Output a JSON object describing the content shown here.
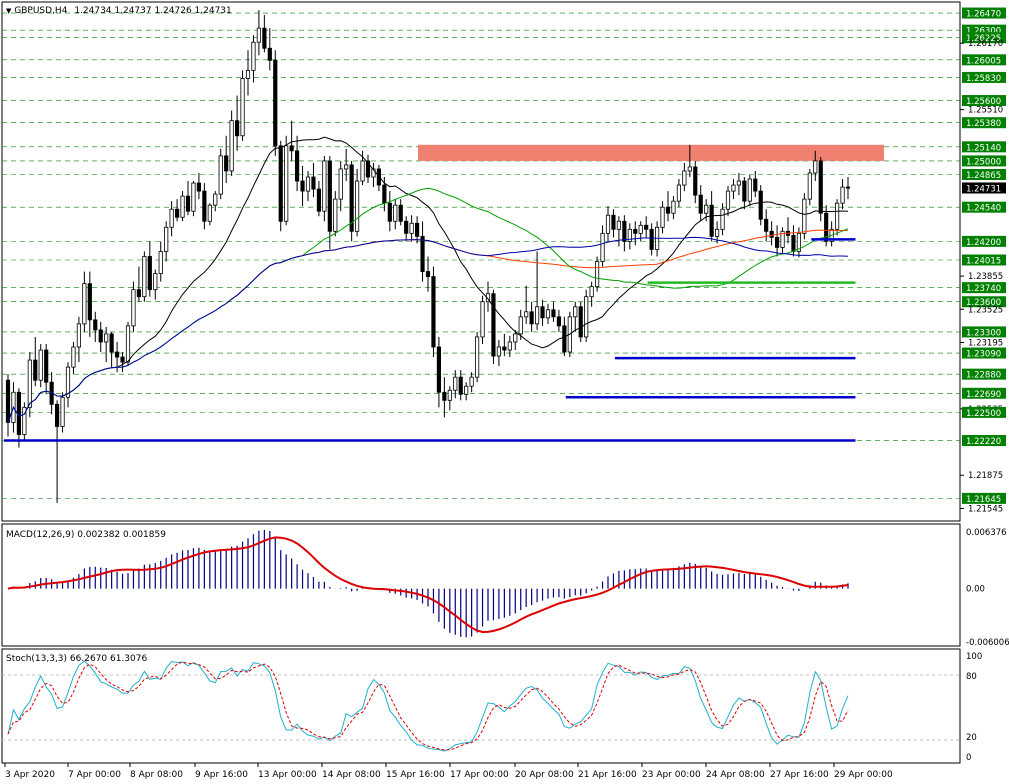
{
  "header": {
    "symbol": "GBPUSD,H4",
    "ohlc": "1.24734 1.24737 1.24726 1.24731"
  },
  "macd": {
    "label": "MACD(12,26,9) 0.002382 0.001859",
    "ticks": [
      "0.006376",
      "0.00",
      "-0.006006"
    ]
  },
  "stoch": {
    "label": "Stoch(13,3,3) 66.2670 61.3076",
    "ticks": [
      "100",
      "80",
      "20",
      "0"
    ]
  },
  "x_labels": [
    "3 Apr 2020",
    "7 Apr 00:00",
    "8 Apr 08:00",
    "9 Apr 16:00",
    "13 Apr 00:00",
    "14 Apr 08:00",
    "15 Apr 16:00",
    "17 Apr 00:00",
    "20 Apr 08:00",
    "21 Apr 16:00",
    "23 Apr 00:00",
    "24 Apr 08:00",
    "27 Apr 16:00",
    "29 Apr 00:00"
  ],
  "colors": {
    "level_line": "#0000cc",
    "support_line": "#22bb22",
    "resistance_zone": "#f08070",
    "up_candle": "#ffffff",
    "down_candle": "#000000",
    "ma_black": "#000000",
    "ma_red": "#ff4000",
    "ma_green": "#00a000",
    "ma_blue": "#0000aa",
    "macd_signal": "#dd0000",
    "macd_hist": "#000080",
    "stoch_main": "#20b0d0",
    "stoch_signal": "#dd0000",
    "price_tag": "#008000",
    "current_tag": "#000000"
  },
  "chart_data": {
    "type": "candlestick",
    "title": "GBPUSD,H4",
    "current_price": 1.24731,
    "ylim": [
      1.2144,
      1.2656
    ],
    "price_labels": [
      {
        "value": 1.2647,
        "text": "1.26470",
        "tag": true
      },
      {
        "value": 1.263,
        "text": "1.26300",
        "tag": true
      },
      {
        "value": 1.26225,
        "text": "1.26225",
        "tag": true
      },
      {
        "value": 1.2617,
        "text": "1.26170",
        "tag": false
      },
      {
        "value": 1.26005,
        "text": "1.26005",
        "tag": true
      },
      {
        "value": 1.2583,
        "text": "1.25830",
        "tag": true
      },
      {
        "value": 1.256,
        "text": "1.25600",
        "tag": true
      },
      {
        "value": 1.2551,
        "text": "1.25510",
        "tag": false
      },
      {
        "value": 1.2538,
        "text": "1.25380",
        "tag": true
      },
      {
        "value": 1.2514,
        "text": "1.25140",
        "tag": true
      },
      {
        "value": 1.25,
        "text": "1.25000",
        "tag": true
      },
      {
        "value": 1.24865,
        "text": "1.24865",
        "tag": true
      },
      {
        "value": 1.24731,
        "text": "1.24731",
        "tag": "current"
      },
      {
        "value": 1.2454,
        "text": "1.24540",
        "tag": true
      },
      {
        "value": 1.242,
        "text": "1.24200",
        "tag": true
      },
      {
        "value": 1.24015,
        "text": "1.24015",
        "tag": true
      },
      {
        "value": 1.23855,
        "text": "1.23855",
        "tag": false
      },
      {
        "value": 1.2374,
        "text": "1.23740",
        "tag": true
      },
      {
        "value": 1.236,
        "text": "1.23600",
        "tag": true
      },
      {
        "value": 1.23525,
        "text": "1.23525",
        "tag": false
      },
      {
        "value": 1.233,
        "text": "1.23300",
        "tag": true
      },
      {
        "value": 1.23195,
        "text": "1.23195",
        "tag": false
      },
      {
        "value": 1.2309,
        "text": "1.23090",
        "tag": true
      },
      {
        "value": 1.2288,
        "text": "1.22880",
        "tag": true
      },
      {
        "value": 1.2269,
        "text": "1.22690",
        "tag": true
      },
      {
        "value": 1.22535,
        "text": "1.22535",
        "tag": false
      },
      {
        "value": 1.225,
        "text": "1.22500",
        "tag": true
      },
      {
        "value": 1.2222,
        "text": "1.22220",
        "tag": true
      },
      {
        "value": 1.21875,
        "text": "1.21875",
        "tag": false
      },
      {
        "value": 1.21645,
        "text": "1.21645",
        "tag": true
      },
      {
        "value": 1.21545,
        "text": "1.21545",
        "tag": false
      }
    ],
    "dashed_levels": [
      1.2647,
      1.263,
      1.26225,
      1.26005,
      1.2583,
      1.256,
      1.2538,
      1.2514,
      1.25,
      1.24865,
      1.2454,
      1.242,
      1.24015,
      1.2374,
      1.236,
      1.233,
      1.2309,
      1.2288,
      1.2269,
      1.225,
      1.2222,
      1.21645
    ],
    "resistance_zone": [
      1.25,
      1.2516
    ],
    "horizontal_lines": [
      {
        "color": "blue",
        "price": 1.2222,
        "from": 0,
        "to": 155
      },
      {
        "color": "blue",
        "price": 1.2265,
        "from": 103,
        "to": 155
      },
      {
        "color": "blue",
        "price": 1.2304,
        "from": 112,
        "to": 155
      },
      {
        "color": "blue",
        "price": 1.2422,
        "from": 148,
        "to": 155
      },
      {
        "color": "green",
        "price": 1.2379,
        "from": 118,
        "to": 155
      }
    ],
    "candles": [
      [
        1.2282,
        1.2288,
        1.2226,
        1.224
      ],
      [
        1.224,
        1.228,
        1.223,
        1.227
      ],
      [
        1.227,
        1.2274,
        1.2215,
        1.2228
      ],
      [
        1.2228,
        1.226,
        1.2222,
        1.2255
      ],
      [
        1.2255,
        1.231,
        1.2245,
        1.2302
      ],
      [
        1.2302,
        1.2325,
        1.2276,
        1.2282
      ],
      [
        1.2282,
        1.2318,
        1.2275,
        1.2312
      ],
      [
        1.2312,
        1.2318,
        1.2268,
        1.228
      ],
      [
        1.228,
        1.229,
        1.2248,
        1.2258
      ],
      [
        1.2258,
        1.2262,
        1.216,
        1.2236
      ],
      [
        1.2236,
        1.227,
        1.223,
        1.2265
      ],
      [
        1.2265,
        1.23,
        1.2255,
        1.2295
      ],
      [
        1.2295,
        1.232,
        1.2288,
        1.2315
      ],
      [
        1.2315,
        1.2345,
        1.23,
        1.2338
      ],
      [
        1.2338,
        1.239,
        1.233,
        1.2378
      ],
      [
        1.2378,
        1.239,
        1.2325,
        1.2342
      ],
      [
        1.2342,
        1.235,
        1.232,
        1.2332
      ],
      [
        1.2332,
        1.234,
        1.231,
        1.232
      ],
      [
        1.232,
        1.2335,
        1.23,
        1.2328
      ],
      [
        1.2328,
        1.233,
        1.2295,
        1.231
      ],
      [
        1.231,
        1.232,
        1.229,
        1.2305
      ],
      [
        1.2305,
        1.231,
        1.229,
        1.23
      ],
      [
        1.23,
        1.234,
        1.2296,
        1.2336
      ],
      [
        1.2336,
        1.238,
        1.233,
        1.2372
      ],
      [
        1.2372,
        1.2395,
        1.236,
        1.2365
      ],
      [
        1.2365,
        1.241,
        1.236,
        1.2405
      ],
      [
        1.2405,
        1.242,
        1.2365,
        1.2372
      ],
      [
        1.2372,
        1.2392,
        1.2362,
        1.2388
      ],
      [
        1.2388,
        1.242,
        1.238,
        1.241
      ],
      [
        1.241,
        1.244,
        1.24,
        1.2434
      ],
      [
        1.2434,
        1.246,
        1.2425,
        1.2452
      ],
      [
        1.2452,
        1.2462,
        1.244,
        1.2444
      ],
      [
        1.2444,
        1.247,
        1.244,
        1.2465
      ],
      [
        1.2465,
        1.248,
        1.2446,
        1.245
      ],
      [
        1.245,
        1.248,
        1.2445,
        1.2478
      ],
      [
        1.2478,
        1.2488,
        1.2462,
        1.247
      ],
      [
        1.247,
        1.2478,
        1.2432,
        1.244
      ],
      [
        1.244,
        1.2458,
        1.2436,
        1.2456
      ],
      [
        1.2456,
        1.247,
        1.245,
        1.2467
      ],
      [
        1.2467,
        1.2512,
        1.2462,
        1.2505
      ],
      [
        1.2505,
        1.2525,
        1.2478,
        1.249
      ],
      [
        1.249,
        1.255,
        1.2485,
        1.254
      ],
      [
        1.254,
        1.2565,
        1.251,
        1.2525
      ],
      [
        1.2525,
        1.259,
        1.252,
        1.2582
      ],
      [
        1.2582,
        1.261,
        1.2565,
        1.259
      ],
      [
        1.259,
        1.2625,
        1.2578,
        1.2618
      ],
      [
        1.2618,
        1.265,
        1.2605,
        1.2632
      ],
      [
        1.2632,
        1.2645,
        1.2608,
        1.2612
      ],
      [
        1.2612,
        1.2632,
        1.259,
        1.26
      ],
      [
        1.26,
        1.261,
        1.2505,
        1.2515
      ],
      [
        1.2515,
        1.252,
        1.243,
        1.244
      ],
      [
        1.244,
        1.2525,
        1.2436,
        1.2515
      ],
      [
        1.2515,
        1.254,
        1.25,
        1.251
      ],
      [
        1.251,
        1.2525,
        1.247,
        1.248
      ],
      [
        1.248,
        1.2495,
        1.2455,
        1.247
      ],
      [
        1.247,
        1.249,
        1.246,
        1.2484
      ],
      [
        1.2484,
        1.2498,
        1.2464,
        1.2472
      ],
      [
        1.2472,
        1.248,
        1.2445,
        1.245
      ],
      [
        1.245,
        1.2505,
        1.244,
        1.25
      ],
      [
        1.25,
        1.2505,
        1.2412,
        1.243
      ],
      [
        1.243,
        1.247,
        1.2425,
        1.2462
      ],
      [
        1.2462,
        1.25,
        1.245,
        1.2492
      ],
      [
        1.2492,
        1.2512,
        1.248,
        1.2496
      ],
      [
        1.2496,
        1.25,
        1.242,
        1.243
      ],
      [
        1.243,
        1.2492,
        1.2425,
        1.248
      ],
      [
        1.248,
        1.251,
        1.2476,
        1.25
      ],
      [
        1.25,
        1.2506,
        1.2478,
        1.2484
      ],
      [
        1.2484,
        1.2498,
        1.2474,
        1.2492
      ],
      [
        1.2492,
        1.2496,
        1.247,
        1.2476
      ],
      [
        1.2476,
        1.2484,
        1.245,
        1.2458
      ],
      [
        1.2458,
        1.247,
        1.243,
        1.244
      ],
      [
        1.244,
        1.2462,
        1.2432,
        1.2456
      ],
      [
        1.2456,
        1.2462,
        1.2436,
        1.244
      ],
      [
        1.244,
        1.2445,
        1.242,
        1.2428
      ],
      [
        1.2428,
        1.2446,
        1.242,
        1.2438
      ],
      [
        1.2438,
        1.2445,
        1.2418,
        1.2425
      ],
      [
        1.2425,
        1.244,
        1.238,
        1.239
      ],
      [
        1.239,
        1.2405,
        1.237,
        1.2385
      ],
      [
        1.2385,
        1.2395,
        1.2305,
        1.2315
      ],
      [
        1.2315,
        1.2325,
        1.2255,
        1.227
      ],
      [
        1.227,
        1.2285,
        1.2245,
        1.2262
      ],
      [
        1.2262,
        1.2276,
        1.2252,
        1.2272
      ],
      [
        1.2272,
        1.2292,
        1.2264,
        1.2285
      ],
      [
        1.2285,
        1.2292,
        1.2262,
        1.2268
      ],
      [
        1.2268,
        1.228,
        1.2262,
        1.2276
      ],
      [
        1.2276,
        1.229,
        1.227,
        1.2285
      ],
      [
        1.2285,
        1.233,
        1.228,
        1.2325
      ],
      [
        1.2325,
        1.2366,
        1.2318,
        1.236
      ],
      [
        1.236,
        1.238,
        1.235,
        1.2368
      ],
      [
        1.2368,
        1.2372,
        1.2298,
        1.2306
      ],
      [
        1.2306,
        1.2322,
        1.2296,
        1.2315
      ],
      [
        1.2315,
        1.2328,
        1.2306,
        1.2312
      ],
      [
        1.2312,
        1.2326,
        1.2305,
        1.232
      ],
      [
        1.232,
        1.2332,
        1.2312,
        1.2328
      ],
      [
        1.2328,
        1.2352,
        1.2322,
        1.2345
      ],
      [
        1.2345,
        1.2376,
        1.2338,
        1.235
      ],
      [
        1.235,
        1.236,
        1.233,
        1.2338
      ],
      [
        1.2338,
        1.241,
        1.2332,
        1.2355
      ],
      [
        1.2355,
        1.2362,
        1.2336,
        1.2344
      ],
      [
        1.2344,
        1.2358,
        1.2338,
        1.2352
      ],
      [
        1.2352,
        1.236,
        1.234,
        1.2345
      ],
      [
        1.2345,
        1.2352,
        1.233,
        1.2336
      ],
      [
        1.2336,
        1.2345,
        1.2306,
        1.231
      ],
      [
        1.231,
        1.235,
        1.2305,
        1.2345
      ],
      [
        1.2345,
        1.236,
        1.233,
        1.2355
      ],
      [
        1.2355,
        1.236,
        1.232,
        1.2325
      ],
      [
        1.2325,
        1.2372,
        1.232,
        1.2365
      ],
      [
        1.2365,
        1.238,
        1.2355,
        1.2375
      ],
      [
        1.2375,
        1.2405,
        1.237,
        1.24
      ],
      [
        1.24,
        1.2436,
        1.2395,
        1.2428
      ],
      [
        1.2428,
        1.2455,
        1.242,
        1.2446
      ],
      [
        1.2446,
        1.2452,
        1.2424,
        1.2432
      ],
      [
        1.2432,
        1.2445,
        1.2415,
        1.244
      ],
      [
        1.244,
        1.2446,
        1.241,
        1.242
      ],
      [
        1.242,
        1.2438,
        1.2412,
        1.2432
      ],
      [
        1.2432,
        1.244,
        1.2416,
        1.2428
      ],
      [
        1.2428,
        1.244,
        1.242,
        1.2436
      ],
      [
        1.2436,
        1.2445,
        1.2424,
        1.2432
      ],
      [
        1.2432,
        1.2438,
        1.2406,
        1.2412
      ],
      [
        1.2412,
        1.244,
        1.2405,
        1.2434
      ],
      [
        1.2434,
        1.246,
        1.2428,
        1.2454
      ],
      [
        1.2454,
        1.247,
        1.244,
        1.2448
      ],
      [
        1.2448,
        1.2465,
        1.2442,
        1.246
      ],
      [
        1.246,
        1.2482,
        1.2454,
        1.2476
      ],
      [
        1.2476,
        1.2498,
        1.247,
        1.249
      ],
      [
        1.249,
        1.2516,
        1.2484,
        1.2494
      ],
      [
        1.2494,
        1.25,
        1.2458,
        1.2466
      ],
      [
        1.2466,
        1.2476,
        1.244,
        1.2448
      ],
      [
        1.2448,
        1.2462,
        1.244,
        1.2456
      ],
      [
        1.2456,
        1.247,
        1.242,
        1.2425
      ],
      [
        1.2425,
        1.244,
        1.2418,
        1.2432
      ],
      [
        1.2432,
        1.2458,
        1.2426,
        1.2452
      ],
      [
        1.2452,
        1.2475,
        1.2445,
        1.247
      ],
      [
        1.247,
        1.2482,
        1.2462,
        1.2476
      ],
      [
        1.2476,
        1.2488,
        1.2466,
        1.248
      ],
      [
        1.248,
        1.2484,
        1.2452,
        1.246
      ],
      [
        1.246,
        1.2486,
        1.2455,
        1.2482
      ],
      [
        1.2482,
        1.249,
        1.2464,
        1.247
      ],
      [
        1.247,
        1.2476,
        1.2436,
        1.2442
      ],
      [
        1.2442,
        1.2452,
        1.242,
        1.243
      ],
      [
        1.243,
        1.244,
        1.2416,
        1.2424
      ],
      [
        1.2424,
        1.2436,
        1.2405,
        1.2414
      ],
      [
        1.2414,
        1.2434,
        1.2408,
        1.243
      ],
      [
        1.243,
        1.2444,
        1.2418,
        1.2426
      ],
      [
        1.2426,
        1.2436,
        1.2405,
        1.241
      ],
      [
        1.241,
        1.2434,
        1.2404,
        1.2428
      ],
      [
        1.2428,
        1.2468,
        1.2422,
        1.2462
      ],
      [
        1.2462,
        1.2492,
        1.2456,
        1.2488
      ],
      [
        1.2488,
        1.251,
        1.248,
        1.25
      ],
      [
        1.25,
        1.2504,
        1.244,
        1.2448
      ],
      [
        1.2448,
        1.2456,
        1.2415,
        1.242
      ],
      [
        1.242,
        1.244,
        1.2415,
        1.2432
      ],
      [
        1.2432,
        1.2462,
        1.2426,
        1.2458
      ],
      [
        1.2458,
        1.2482,
        1.2452,
        1.2474
      ],
      [
        1.2474,
        1.2484,
        1.2462,
        1.2473
      ]
    ]
  }
}
